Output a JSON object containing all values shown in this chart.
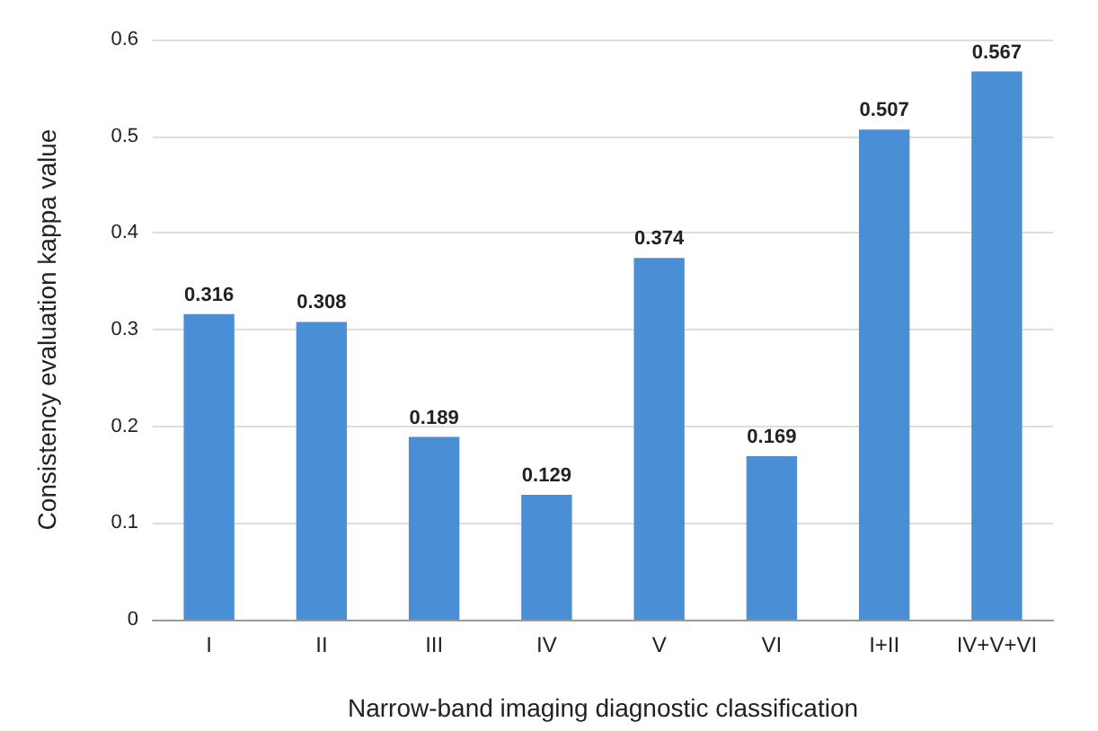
{
  "chart_data": {
    "type": "bar",
    "xlabel": "Narrow-band imaging diagnostic classification",
    "ylabel": "Consistency evaluation kappa value",
    "categories": [
      "I",
      "II",
      "III",
      "IV",
      "V",
      "VI",
      "I+II",
      "IV+V+VI"
    ],
    "values": [
      0.316,
      0.308,
      0.189,
      0.129,
      0.374,
      0.169,
      0.507,
      0.567
    ],
    "color": "#4a8ed6",
    "ylim": [
      0,
      0.6
    ],
    "yticks": [
      0,
      0.1,
      0.2,
      0.3,
      0.4,
      0.5,
      0.6
    ],
    "grid": "y",
    "data_labels": true
  }
}
